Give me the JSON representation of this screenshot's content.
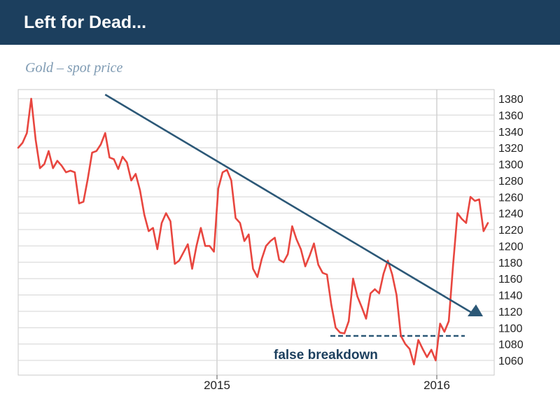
{
  "header": {
    "title": "Left for Dead..."
  },
  "chart_data": {
    "type": "line",
    "title": "Left for Dead...",
    "subtitle": "Gold – spot price",
    "xlabel": "",
    "ylabel": "",
    "x_ticks": [
      "2015",
      "2016"
    ],
    "y_ticks": [
      1060,
      1080,
      1100,
      1120,
      1140,
      1160,
      1180,
      1200,
      1220,
      1240,
      1260,
      1280,
      1300,
      1320,
      1340,
      1360,
      1380
    ],
    "ylim": [
      1045,
      1390
    ],
    "y_axis_position": "right",
    "grid": true,
    "colors": {
      "series": "#e8463f",
      "trendline": "#2c5877",
      "header": "#1c3f5e",
      "annotation": "#1c3f5e"
    },
    "series": [
      {
        "values": [
          1320,
          1326,
          1338,
          1380,
          1330,
          1295,
          1300,
          1316,
          1295,
          1304,
          1298,
          1290,
          1292,
          1290,
          1252,
          1254,
          1282,
          1314,
          1316,
          1324,
          1338,
          1308,
          1306,
          1294,
          1309,
          1302,
          1280,
          1288,
          1268,
          1238,
          1218,
          1222,
          1196,
          1228,
          1240,
          1230,
          1178,
          1182,
          1192,
          1202,
          1172,
          1200,
          1222,
          1200,
          1200,
          1193,
          1270,
          1290,
          1293,
          1280,
          1234,
          1228,
          1206,
          1214,
          1172,
          1162,
          1184,
          1200,
          1206,
          1210,
          1183,
          1180,
          1190,
          1224,
          1208,
          1196,
          1175,
          1188,
          1203,
          1177,
          1167,
          1165,
          1128,
          1100,
          1094,
          1093,
          1108,
          1160,
          1138,
          1125,
          1111,
          1142,
          1147,
          1142,
          1166,
          1182,
          1165,
          1140,
          1090,
          1080,
          1074,
          1055,
          1085,
          1074,
          1064,
          1073,
          1060,
          1105,
          1095,
          1108,
          1177,
          1240,
          1233,
          1228,
          1260,
          1255,
          1257,
          1218,
          1228
        ]
      }
    ],
    "trendline": {
      "from": {
        "index": 20,
        "value": 1385
      },
      "to": {
        "index": 106,
        "value": 1115
      }
    },
    "support_line": {
      "value": 1090,
      "from_index": 72,
      "to_index": 106
    },
    "annotations": [
      {
        "text": "false breakdown"
      }
    ]
  }
}
